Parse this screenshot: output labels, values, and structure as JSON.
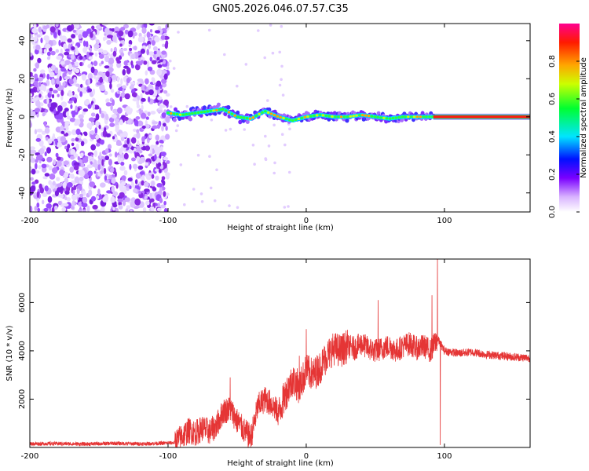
{
  "title": "GN05.2026.046.07.57.C35",
  "chart_data": [
    {
      "type": "heatmap",
      "xlabel": "Height of straight line (km)",
      "ylabel": "Frequency (Hz)",
      "xlim": [
        -200,
        162
      ],
      "ylim": [
        -50,
        49
      ],
      "xticks": [
        -200,
        -100,
        0,
        100
      ],
      "xtick_labels": [
        "-200",
        "-100",
        "0",
        "100"
      ],
      "yticks": [
        -40,
        -20,
        0,
        20,
        40
      ],
      "ytick_labels": [
        "-40",
        "-20",
        "0",
        "20",
        "40"
      ],
      "colorbar": {
        "label": "Normalized spectral amplitude",
        "range": [
          0,
          1
        ],
        "ticks": [
          0.0,
          0.2,
          0.4,
          0.6,
          0.8
        ],
        "tick_labels": [
          "0.0",
          "0.2",
          "0.4",
          "0.6",
          "0.8"
        ]
      },
      "regions": [
        {
          "name": "noise",
          "x_range": [
            -200,
            -100
          ],
          "description": "scattered low-amplitude noise across all frequencies"
        },
        {
          "name": "trace",
          "x_range": [
            -100,
            92
          ],
          "description": "narrow band near 0 Hz with moderate amplitude"
        },
        {
          "name": "strong-line",
          "x_range": [
            92,
            162
          ],
          "center_hz": 0,
          "description": "steady maximum-amplitude line at 0 Hz"
        }
      ],
      "trace_center_hz": [
        [
          -100,
          2
        ],
        [
          -90,
          1
        ],
        [
          -80,
          2
        ],
        [
          -70,
          3
        ],
        [
          -60,
          4
        ],
        [
          -50,
          0
        ],
        [
          -40,
          -1
        ],
        [
          -30,
          3
        ],
        [
          -20,
          0
        ],
        [
          -10,
          -2
        ],
        [
          0,
          0
        ],
        [
          10,
          1
        ],
        [
          20,
          0
        ],
        [
          30,
          0
        ],
        [
          40,
          1
        ],
        [
          50,
          0
        ],
        [
          60,
          -1
        ],
        [
          70,
          0
        ],
        [
          80,
          0
        ],
        [
          90,
          0
        ]
      ]
    },
    {
      "type": "line",
      "xlabel": "Height of straight line (km)",
      "ylabel": "SNR (10 * v/v)",
      "xlim": [
        -200,
        162
      ],
      "ylim": [
        0,
        7800
      ],
      "xticks": [
        -200,
        -100,
        0,
        100
      ],
      "xtick_labels": [
        "-200",
        "-100",
        "0",
        "100"
      ],
      "yticks": [
        2000,
        4000,
        6000
      ],
      "ytick_labels": [
        "2000",
        "4000",
        "6000"
      ],
      "color": "#e53535",
      "series": [
        {
          "name": "SNR",
          "x": [
            -200,
            -180,
            -160,
            -140,
            -120,
            -100,
            -95,
            -90,
            -85,
            -80,
            -75,
            -70,
            -65,
            -60,
            -55,
            -50,
            -45,
            -40,
            -35,
            -30,
            -25,
            -20,
            -15,
            -10,
            -5,
            0,
            5,
            10,
            15,
            20,
            25,
            30,
            35,
            40,
            45,
            50,
            55,
            60,
            65,
            70,
            75,
            80,
            85,
            90,
            95,
            100,
            110,
            120,
            130,
            140,
            150,
            162
          ],
          "y": [
            150,
            160,
            140,
            170,
            150,
            180,
            200,
            450,
            700,
            600,
            800,
            650,
            900,
            1500,
            1600,
            1100,
            700,
            400,
            1700,
            2000,
            1800,
            1400,
            2200,
            2800,
            2500,
            3200,
            3000,
            3300,
            3800,
            4100,
            4000,
            4200,
            4100,
            4300,
            4100,
            4000,
            4100,
            4200,
            4000,
            4200,
            4300,
            4100,
            4200,
            4000,
            4500,
            4000,
            3900,
            3950,
            3850,
            3800,
            3750,
            3700
          ]
        }
      ],
      "spikes": [
        {
          "x": -55,
          "value": 2900
        },
        {
          "x": -5,
          "value": 3800
        },
        {
          "x": 0,
          "value": 4900
        },
        {
          "x": 52,
          "value": 6100
        },
        {
          "x": 91,
          "value": 6300
        },
        {
          "x": 95,
          "value": 7800
        },
        {
          "x": 97,
          "value": 100
        }
      ]
    }
  ]
}
